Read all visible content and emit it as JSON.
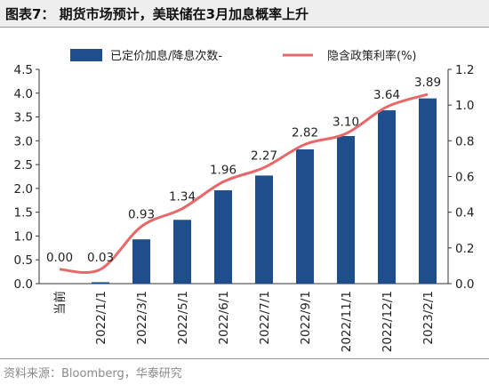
{
  "title": "图表7： 期货市场预计，美联储在3月加息概率上升",
  "source": "资料来源：Bloomberg，华泰研究",
  "chart_data": {
    "type": "bar",
    "categories": [
      "当前",
      "2022/1/1",
      "2022/3/1",
      "2022/5/1",
      "2022/6/1",
      "2022/7/1",
      "2022/9/1",
      "2022/11/1",
      "2022/12/1",
      "2023/2/1"
    ],
    "series": [
      {
        "name": "已定价加息/降息次数-",
        "type": "bar",
        "axis": "left",
        "color": "#1f4e8c",
        "values": [
          0.0,
          0.03,
          0.93,
          1.34,
          1.96,
          2.27,
          2.82,
          3.1,
          3.64,
          3.89
        ],
        "labels": [
          "0.00",
          "0.03",
          "0.93",
          "1.34",
          "1.96",
          "2.27",
          "2.82",
          "3.10",
          "3.64",
          "3.89"
        ]
      },
      {
        "name": "隐含政策利率(%)",
        "type": "line",
        "axis": "right",
        "color": "#e8686a",
        "values": [
          0.08,
          0.08,
          0.32,
          0.42,
          0.57,
          0.65,
          0.78,
          0.84,
          0.99,
          1.06
        ]
      }
    ],
    "left_axis": {
      "min": 0,
      "max": 4.5,
      "ticks": [
        "0.0",
        "0.5",
        "1.0",
        "1.5",
        "2.0",
        "2.5",
        "3.0",
        "3.5",
        "4.0",
        "4.5"
      ]
    },
    "right_axis": {
      "min": 0,
      "max": 1.2,
      "ticks": [
        "0.0",
        "0.2",
        "0.4",
        "0.6",
        "0.8",
        "1.0",
        "1.2"
      ]
    },
    "legend_position": "top"
  }
}
